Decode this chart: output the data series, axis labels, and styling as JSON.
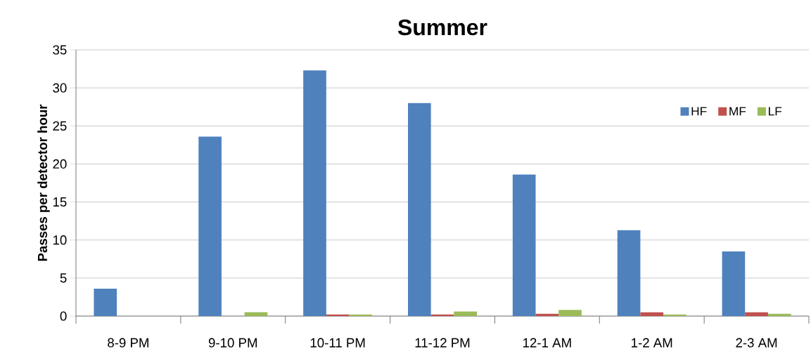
{
  "chart_data": {
    "type": "bar",
    "title": "Summer",
    "ylabel": "Passes per detector hour",
    "categories": [
      "8-9 PM",
      "9-10 PM",
      "10-11 PM",
      "11-12 PM",
      "12-1 AM",
      "1-2 AM",
      "2-3 AM"
    ],
    "series": [
      {
        "name": "HF",
        "color": "#4f81bd",
        "values": [
          3.6,
          23.6,
          32.3,
          28.0,
          18.6,
          11.3,
          8.5
        ]
      },
      {
        "name": "MF",
        "color": "#c0504d",
        "values": [
          0,
          0,
          0.2,
          0.2,
          0.3,
          0.5,
          0.5
        ]
      },
      {
        "name": "LF",
        "color": "#9bbb59",
        "values": [
          0,
          0.5,
          0.2,
          0.6,
          0.8,
          0.2,
          0.3
        ]
      }
    ],
    "ylim": [
      0,
      35
    ],
    "yticks": [
      0,
      5,
      10,
      15,
      20,
      25,
      30,
      35
    ],
    "grid": "y",
    "legend": "top right"
  }
}
